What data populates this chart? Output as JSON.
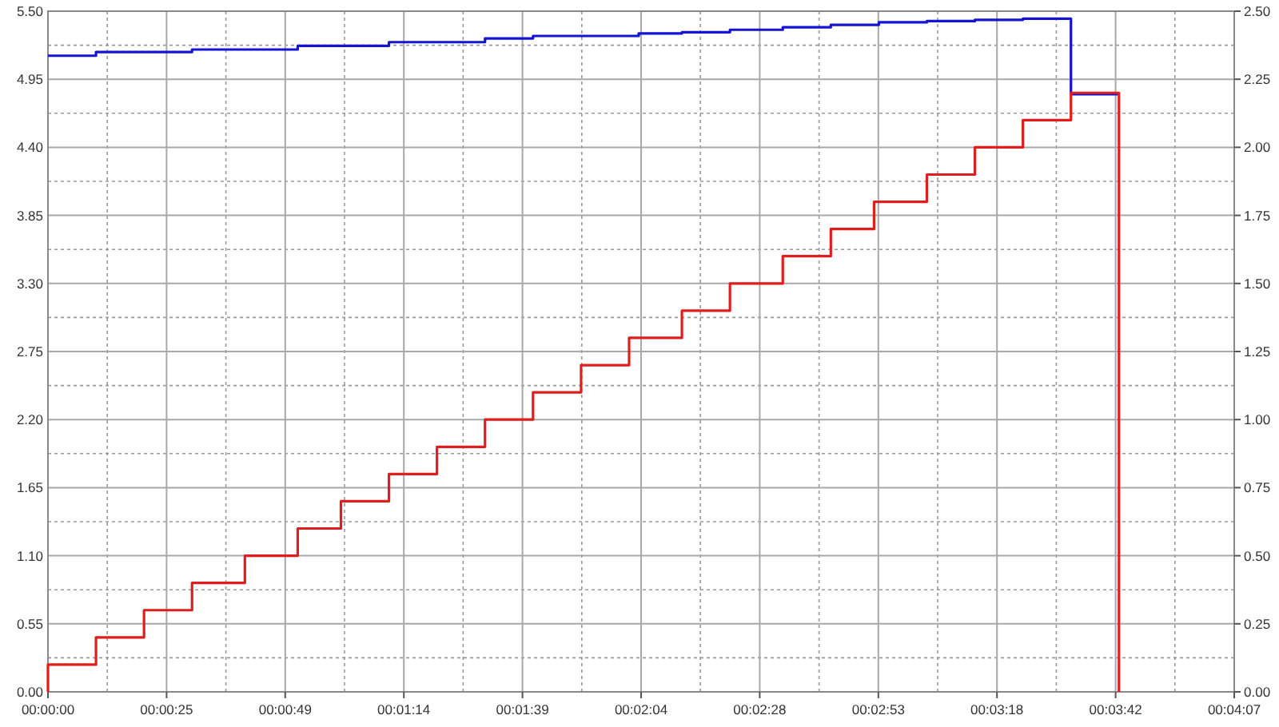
{
  "chart_data": {
    "type": "step",
    "grid": true,
    "marker": "none",
    "line_style": "solid",
    "xlim": [
      0,
      247
    ],
    "xticks": [
      {
        "value": 0,
        "label": "00:00:00"
      },
      {
        "value": 24.7,
        "label": "00:00:25"
      },
      {
        "value": 49.4,
        "label": "00:00:49"
      },
      {
        "value": 74.1,
        "label": "00:01:14"
      },
      {
        "value": 98.8,
        "label": "00:01:39"
      },
      {
        "value": 123.5,
        "label": "00:02:04"
      },
      {
        "value": 148.2,
        "label": "00:02:28"
      },
      {
        "value": 172.9,
        "label": "00:02:53"
      },
      {
        "value": 197.6,
        "label": "00:03:18"
      },
      {
        "value": 222.3,
        "label": "00:03:42"
      },
      {
        "value": 247,
        "label": "00:04:07"
      }
    ],
    "ylim": [
      0,
      5.5
    ],
    "yticks": [
      {
        "value": 0,
        "label": "0.00"
      },
      {
        "value": 0.55,
        "label": "0.55"
      },
      {
        "value": 1.1,
        "label": "1.10"
      },
      {
        "value": 1.65,
        "label": "1.65"
      },
      {
        "value": 2.2,
        "label": "2.20"
      },
      {
        "value": 2.75,
        "label": "2.75"
      },
      {
        "value": 3.3,
        "label": "3.30"
      },
      {
        "value": 3.85,
        "label": "3.85"
      },
      {
        "value": 4.4,
        "label": "4.40"
      },
      {
        "value": 4.95,
        "label": "4.95"
      },
      {
        "value": 5.5,
        "label": "5.50"
      }
    ],
    "y2lim": [
      0,
      2.5
    ],
    "y2ticks": [
      {
        "value": 0,
        "label": "0.00"
      },
      {
        "value": 0.25,
        "label": "0.25"
      },
      {
        "value": 0.5,
        "label": "0.50"
      },
      {
        "value": 0.75,
        "label": "0.75"
      },
      {
        "value": 1,
        "label": "1.00"
      },
      {
        "value": 1.25,
        "label": "1.25"
      },
      {
        "value": 1.5,
        "label": "1.50"
      },
      {
        "value": 1.75,
        "label": "1.75"
      },
      {
        "value": 2,
        "label": "2.00"
      },
      {
        "value": 2.25,
        "label": "2.25"
      },
      {
        "value": 2.5,
        "label": "2.50"
      }
    ],
    "series": [
      {
        "color": "#1414d2",
        "axis": "y",
        "x": [
          0,
          10,
          30,
          52,
          71,
          91,
          101,
          123,
          132,
          142,
          153,
          163,
          173,
          183,
          193,
          203,
          213,
          223
        ],
        "values": [
          5.14,
          5.17,
          5.19,
          5.22,
          5.25,
          5.28,
          5.3,
          5.32,
          5.33,
          5.35,
          5.37,
          5.39,
          5.41,
          5.42,
          5.43,
          5.44,
          4.83,
          4.83
        ]
      },
      {
        "color": "#e01e1e",
        "axis": "y2",
        "x": [
          0,
          0,
          10,
          20,
          30,
          41,
          52,
          61,
          71,
          81,
          91,
          101,
          111,
          121,
          132,
          142,
          153,
          163,
          172,
          183,
          193,
          203,
          213,
          223,
          223
        ],
        "values": [
          0,
          0.1,
          0.2,
          0.3,
          0.4,
          0.5,
          0.6,
          0.7,
          0.8,
          0.9,
          1.0,
          1.1,
          1.2,
          1.3,
          1.4,
          1.5,
          1.6,
          1.7,
          1.8,
          1.9,
          2.0,
          2.1,
          2.2,
          2.2,
          0
        ]
      }
    ]
  }
}
